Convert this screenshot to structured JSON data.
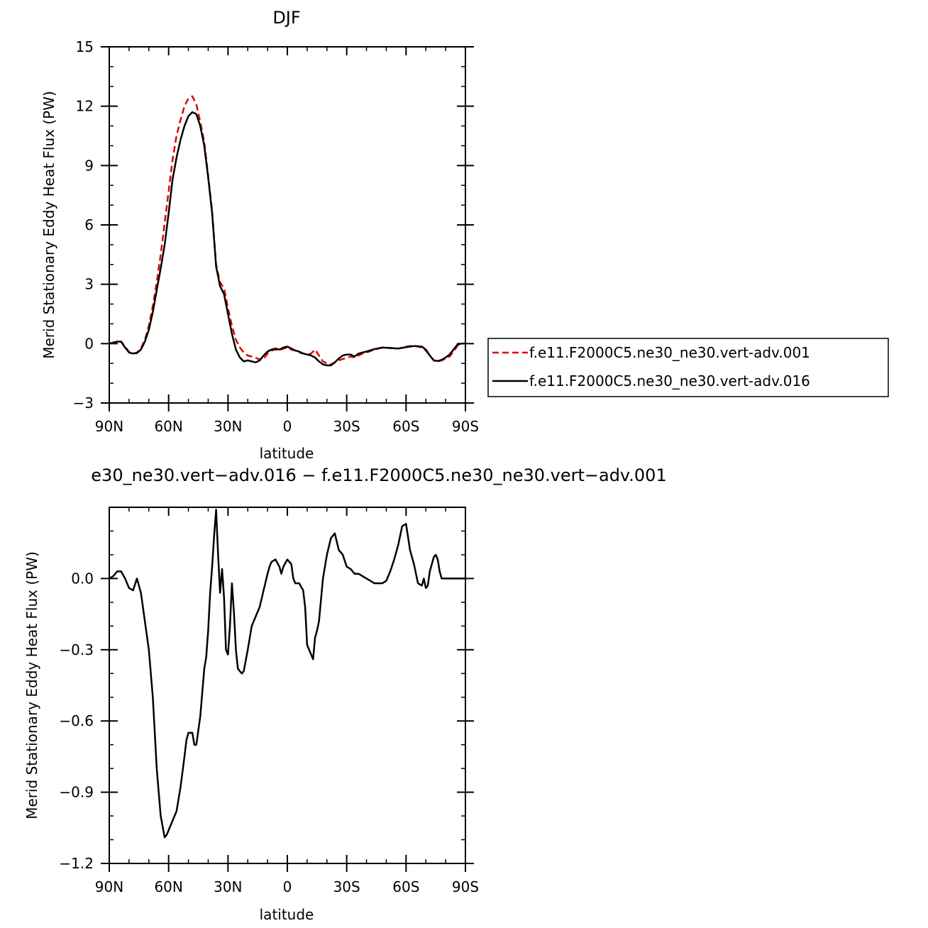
{
  "chart_data": [
    {
      "type": "line",
      "title": "DJF",
      "xlabel": "latitude",
      "ylabel": "Merid Stationary Eddy Heat Flux (PW)",
      "xlim": [
        90,
        -90
      ],
      "ylim": [
        -3,
        15
      ],
      "x_ticks": [
        90,
        60,
        30,
        0,
        -30,
        -60,
        -90
      ],
      "x_tick_labels": [
        "90N",
        "60N",
        "30N",
        "0",
        "30S",
        "60S",
        "90S"
      ],
      "y_ticks": [
        -3,
        0,
        3,
        6,
        9,
        12,
        15
      ],
      "y_tick_labels": [
        "−3",
        "0",
        "3",
        "6",
        "9",
        "12",
        "15"
      ],
      "legend": "right",
      "series": [
        {
          "name": "f.e11.F2000C5.ne30_ne30.vert-adv.001",
          "color": "#e00000",
          "dash": true,
          "x": [
            90,
            88,
            86,
            84,
            82,
            80,
            78,
            76,
            74,
            72,
            70,
            68,
            66,
            64,
            62,
            60,
            58,
            56,
            54,
            52,
            50,
            48,
            46,
            44,
            42,
            40,
            38,
            36,
            34,
            32,
            30,
            28,
            26,
            24,
            22,
            20,
            18,
            16,
            14,
            12,
            10,
            8,
            6,
            4,
            2,
            0,
            -2,
            -4,
            -6,
            -8,
            -10,
            -12,
            -14,
            -16,
            -18,
            -20,
            -22,
            -24,
            -26,
            -28,
            -30,
            -32,
            -34,
            -36,
            -38,
            -40,
            -44,
            -48,
            -52,
            -56,
            -60,
            -64,
            -68,
            -70,
            -72,
            -74,
            -76,
            -78,
            -80,
            -82,
            -84,
            -86,
            -88,
            -90
          ],
          "y": [
            0.0,
            0.03,
            0.08,
            0.1,
            -0.15,
            -0.42,
            -0.5,
            -0.45,
            -0.25,
            0.2,
            0.9,
            1.9,
            3.1,
            4.5,
            6.1,
            7.7,
            9.3,
            10.5,
            11.3,
            12.0,
            12.4,
            12.5,
            12.1,
            11.2,
            10.2,
            8.5,
            6.7,
            4.0,
            3.1,
            2.8,
            1.8,
            0.9,
            0.2,
            -0.2,
            -0.45,
            -0.6,
            -0.65,
            -0.72,
            -0.8,
            -0.78,
            -0.5,
            -0.35,
            -0.3,
            -0.35,
            -0.25,
            -0.2,
            -0.3,
            -0.35,
            -0.45,
            -0.5,
            -0.55,
            -0.5,
            -0.3,
            -0.6,
            -0.9,
            -1.0,
            -1.05,
            -0.95,
            -0.85,
            -0.78,
            -0.72,
            -0.65,
            -0.7,
            -0.6,
            -0.5,
            -0.45,
            -0.3,
            -0.2,
            -0.22,
            -0.25,
            -0.15,
            -0.1,
            -0.2,
            -0.35,
            -0.6,
            -0.85,
            -0.9,
            -0.85,
            -0.75,
            -0.65,
            -0.4,
            -0.1,
            0.0,
            0.0
          ]
        },
        {
          "name": "f.e11.F2000C5.ne30_ne30.vert-adv.016",
          "color": "#000000",
          "dash": false,
          "x": [
            90,
            88,
            86,
            84,
            82,
            80,
            78,
            76,
            74,
            72,
            70,
            68,
            66,
            64,
            62,
            60,
            58,
            56,
            54,
            52,
            50,
            48,
            46,
            44,
            42,
            40,
            38,
            36,
            34,
            32,
            30,
            28,
            26,
            24,
            22,
            20,
            18,
            16,
            14,
            12,
            10,
            8,
            6,
            4,
            2,
            0,
            -2,
            -4,
            -6,
            -8,
            -10,
            -12,
            -14,
            -16,
            -18,
            -20,
            -22,
            -24,
            -26,
            -28,
            -30,
            -32,
            -34,
            -36,
            -38,
            -40,
            -44,
            -48,
            -52,
            -56,
            -60,
            -64,
            -68,
            -70,
            -72,
            -74,
            -76,
            -78,
            -80,
            -82,
            -84,
            -86,
            -88,
            -90
          ],
          "y": [
            0.0,
            0.05,
            0.1,
            0.1,
            -0.2,
            -0.45,
            -0.5,
            -0.48,
            -0.3,
            0.1,
            0.7,
            1.6,
            2.7,
            3.8,
            5.0,
            6.6,
            8.3,
            9.4,
            10.3,
            11.0,
            11.5,
            11.7,
            11.6,
            11.0,
            10.0,
            8.4,
            6.6,
            3.9,
            2.9,
            2.5,
            1.5,
            0.5,
            -0.3,
            -0.7,
            -0.9,
            -0.85,
            -0.9,
            -0.95,
            -0.85,
            -0.6,
            -0.4,
            -0.3,
            -0.25,
            -0.3,
            -0.2,
            -0.15,
            -0.25,
            -0.35,
            -0.4,
            -0.5,
            -0.55,
            -0.6,
            -0.7,
            -0.9,
            -1.05,
            -1.1,
            -1.1,
            -0.95,
            -0.75,
            -0.6,
            -0.55,
            -0.55,
            -0.65,
            -0.5,
            -0.45,
            -0.4,
            -0.28,
            -0.2,
            -0.22,
            -0.25,
            -0.18,
            -0.12,
            -0.15,
            -0.3,
            -0.6,
            -0.85,
            -0.88,
            -0.82,
            -0.7,
            -0.55,
            -0.3,
            -0.05,
            0.0,
            0.0
          ]
        }
      ]
    },
    {
      "type": "line",
      "title": "e30_ne30.vert−adv.016 − f.e11.F2000C5.ne30_ne30.vert−adv.001",
      "xlabel": "latitude",
      "ylabel": "Merid Stationary Eddy Heat Flux (PW)",
      "xlim": [
        90,
        -90
      ],
      "ylim": [
        -1.2,
        0.3
      ],
      "x_ticks": [
        90,
        60,
        30,
        0,
        -30,
        -60,
        -90
      ],
      "x_tick_labels": [
        "90N",
        "60N",
        "30N",
        "0",
        "30S",
        "60S",
        "90S"
      ],
      "y_ticks": [
        -1.2,
        -0.9,
        -0.6,
        -0.3,
        0.0
      ],
      "y_tick_labels": [
        "−1.2",
        "−0.9",
        "−0.6",
        "−0.3",
        "0.0"
      ],
      "series": [
        {
          "color": "#000000",
          "x": [
            90,
            88,
            86,
            84,
            82,
            80,
            78,
            76,
            75,
            74,
            72,
            70,
            68,
            66,
            64,
            62,
            61,
            60,
            58,
            56,
            54,
            52,
            51,
            50,
            48,
            47,
            46,
            44,
            42,
            41,
            40,
            39,
            38,
            37,
            36,
            35,
            34,
            33,
            32,
            31,
            30,
            29,
            28,
            27,
            26,
            25,
            24,
            23,
            22,
            20,
            18,
            16,
            14,
            12,
            10,
            9,
            8,
            6,
            4,
            3,
            2,
            0,
            -2,
            -3,
            -4,
            -6,
            -8,
            -9,
            -10,
            -12,
            -13,
            -14,
            -15,
            -16,
            -18,
            -20,
            -22,
            -24,
            -26,
            -28,
            -30,
            -32,
            -34,
            -36,
            -38,
            -40,
            -42,
            -44,
            -46,
            -48,
            -50,
            -52,
            -54,
            -56,
            -58,
            -60,
            -62,
            -64,
            -66,
            -68,
            -69,
            -70,
            -71,
            -72,
            -73,
            -74,
            -75,
            -76,
            -77,
            -78,
            -80,
            -82,
            -84,
            -86,
            -88,
            -90
          ],
          "y": [
            0.0,
            0.01,
            0.03,
            0.03,
            0.0,
            -0.04,
            -0.05,
            0.0,
            -0.03,
            -0.06,
            -0.18,
            -0.3,
            -0.5,
            -0.8,
            -1.0,
            -1.09,
            -1.08,
            -1.06,
            -1.02,
            -0.98,
            -0.88,
            -0.75,
            -0.68,
            -0.65,
            -0.65,
            -0.7,
            -0.7,
            -0.58,
            -0.38,
            -0.33,
            -0.22,
            -0.06,
            0.05,
            0.18,
            0.29,
            0.1,
            -0.06,
            0.04,
            -0.08,
            -0.3,
            -0.32,
            -0.2,
            -0.02,
            -0.14,
            -0.3,
            -0.38,
            -0.39,
            -0.4,
            -0.39,
            -0.3,
            -0.2,
            -0.16,
            -0.12,
            -0.05,
            0.02,
            0.05,
            0.07,
            0.08,
            0.05,
            0.02,
            0.05,
            0.08,
            0.06,
            0.0,
            -0.02,
            -0.02,
            -0.05,
            -0.12,
            -0.28,
            -0.32,
            -0.34,
            -0.25,
            -0.22,
            -0.18,
            0.0,
            0.1,
            0.17,
            0.19,
            0.12,
            0.1,
            0.05,
            0.04,
            0.02,
            0.02,
            0.01,
            0.0,
            -0.01,
            -0.02,
            -0.02,
            -0.02,
            -0.01,
            0.03,
            0.08,
            0.14,
            0.22,
            0.23,
            0.12,
            0.06,
            -0.02,
            -0.03,
            0.0,
            -0.04,
            -0.03,
            0.03,
            0.06,
            0.09,
            0.1,
            0.08,
            0.03,
            0.0,
            0.0,
            0.0,
            0.0,
            0.0,
            0.0,
            0.0
          ]
        }
      ]
    }
  ]
}
